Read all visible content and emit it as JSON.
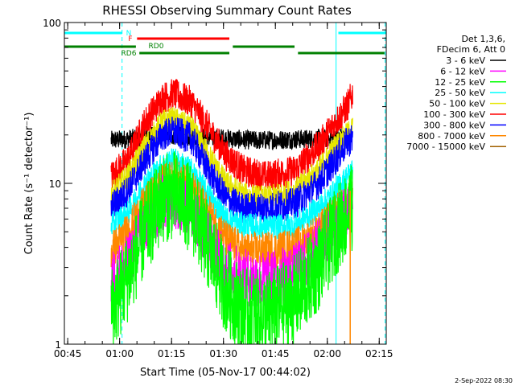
{
  "chart_data": {
    "type": "line",
    "title": "RHESSI Observing Summary Count Rates",
    "xlabel": "Start Time (05-Nov-17 00:44:02)",
    "ylabel": "Count Rate (s⁻¹ detector⁻¹)",
    "yscale": "log",
    "xlim": [
      0,
      5580
    ],
    "ylim": [
      1,
      100
    ],
    "x_ticks": [
      {
        "t": 58,
        "label": "00:45"
      },
      {
        "t": 958,
        "label": "01:00"
      },
      {
        "t": 1858,
        "label": "01:15"
      },
      {
        "t": 2758,
        "label": "01:30"
      },
      {
        "t": 3658,
        "label": "01:45"
      },
      {
        "t": 4558,
        "label": "02:00"
      },
      {
        "t": 5458,
        "label": "02:15"
      }
    ],
    "y_ticks": [
      {
        "v": 1,
        "label": "1"
      },
      {
        "v": 10,
        "label": "10"
      },
      {
        "v": 100,
        "label": "100"
      }
    ],
    "legend": {
      "placement": "right",
      "header": [
        "Det 1,3,6,",
        "FDecim 6, Att 0"
      ],
      "entries": [
        {
          "label": "3 - 6 keV",
          "color": "#000000"
        },
        {
          "label": "6 - 12 keV",
          "color": "#ff00ff"
        },
        {
          "label": "12 - 25 keV",
          "color": "#00ff00"
        },
        {
          "label": "25 - 50 keV",
          "color": "#00ffff"
        },
        {
          "label": "50 - 100 keV",
          "color": "#e6e600"
        },
        {
          "label": "100 - 300 keV",
          "color": "#ff0000"
        },
        {
          "label": "300 - 800 keV",
          "color": "#0000ff"
        },
        {
          "label": "800 - 7000 keV",
          "color": "#ff8800"
        },
        {
          "label": "7000 - 15000 keV",
          "color": "#a06000"
        }
      ]
    },
    "series": [
      {
        "name": "3 - 6 keV",
        "color": "#000000",
        "noise": 0.06,
        "points": [
          [
            810,
            18.5
          ],
          [
            1200,
            19
          ],
          [
            1700,
            20
          ],
          [
            2200,
            19.5
          ],
          [
            2800,
            19
          ],
          [
            3300,
            18.5
          ],
          [
            4000,
            18.8
          ],
          [
            4500,
            19
          ],
          [
            4900,
            19.5
          ]
        ]
      },
      {
        "name": "100 - 300 keV",
        "color": "#ff0000",
        "noise": 0.1,
        "points": [
          [
            810,
            11
          ],
          [
            1100,
            14
          ],
          [
            1400,
            24
          ],
          [
            1700,
            34
          ],
          [
            1900,
            36
          ],
          [
            2200,
            32
          ],
          [
            2500,
            22
          ],
          [
            2800,
            15
          ],
          [
            3100,
            12
          ],
          [
            3500,
            11
          ],
          [
            4000,
            12
          ],
          [
            4400,
            17
          ],
          [
            4700,
            24
          ],
          [
            4900,
            30
          ],
          [
            5000,
            36
          ]
        ]
      },
      {
        "name": "50 - 100 keV",
        "color": "#e6e600",
        "noise": 0.08,
        "points": [
          [
            810,
            8.5
          ],
          [
            1100,
            11
          ],
          [
            1400,
            17
          ],
          [
            1700,
            24
          ],
          [
            1900,
            25
          ],
          [
            2200,
            22
          ],
          [
            2500,
            15
          ],
          [
            2800,
            10
          ],
          [
            3100,
            8.5
          ],
          [
            3500,
            8
          ],
          [
            4000,
            9
          ],
          [
            4400,
            12
          ],
          [
            4700,
            17
          ],
          [
            4900,
            20
          ],
          [
            5000,
            22
          ]
        ]
      },
      {
        "name": "300 - 800 keV",
        "color": "#0000ff",
        "noise": 0.1,
        "points": [
          [
            810,
            7
          ],
          [
            1100,
            9
          ],
          [
            1400,
            14
          ],
          [
            1700,
            20
          ],
          [
            1900,
            21
          ],
          [
            2200,
            19
          ],
          [
            2500,
            12
          ],
          [
            2800,
            8
          ],
          [
            3100,
            7
          ],
          [
            3500,
            7
          ],
          [
            4000,
            7.5
          ],
          [
            4400,
            10
          ],
          [
            4700,
            14
          ],
          [
            4900,
            18
          ],
          [
            5000,
            19
          ]
        ]
      },
      {
        "name": "25 - 50 keV",
        "color": "#00ffff",
        "noise": 0.08,
        "points": [
          [
            810,
            5.5
          ],
          [
            1100,
            6.5
          ],
          [
            1400,
            10
          ],
          [
            1700,
            13
          ],
          [
            1900,
            14
          ],
          [
            2200,
            12
          ],
          [
            2500,
            8.5
          ],
          [
            2800,
            6
          ],
          [
            3100,
            5.5
          ],
          [
            3500,
            5.3
          ],
          [
            4000,
            5.5
          ],
          [
            4400,
            7
          ],
          [
            4700,
            9
          ],
          [
            4900,
            11
          ],
          [
            5000,
            12
          ]
        ]
      },
      {
        "name": "800 - 7000 keV",
        "color": "#ff8800",
        "noise": 0.12,
        "points": [
          [
            810,
            3.8
          ],
          [
            1100,
            5
          ],
          [
            1400,
            7.5
          ],
          [
            1700,
            10
          ],
          [
            1900,
            11
          ],
          [
            2200,
            9.5
          ],
          [
            2500,
            6.5
          ],
          [
            2800,
            4.5
          ],
          [
            3100,
            3.8
          ],
          [
            3500,
            3.8
          ],
          [
            4000,
            4
          ],
          [
            4400,
            5
          ],
          [
            4700,
            6.5
          ],
          [
            4900,
            7.5
          ],
          [
            5000,
            8
          ]
        ]
      },
      {
        "name": "6 - 12 keV",
        "color": "#ff00ff",
        "noise": 0.18,
        "points": [
          [
            810,
            2.5
          ],
          [
            1100,
            3.2
          ],
          [
            1400,
            5.5
          ],
          [
            1700,
            7.5
          ],
          [
            1900,
            8
          ],
          [
            2200,
            7
          ],
          [
            2500,
            4.5
          ],
          [
            2800,
            3
          ],
          [
            3100,
            2.6
          ],
          [
            3500,
            2.5
          ],
          [
            4000,
            2.8
          ],
          [
            4400,
            4
          ],
          [
            4700,
            5.5
          ],
          [
            4900,
            6.5
          ],
          [
            5000,
            7
          ]
        ]
      },
      {
        "name": "12 - 25 keV",
        "color": "#00ff00",
        "noise": 0.28,
        "points": [
          [
            810,
            1.6
          ],
          [
            1100,
            2.6
          ],
          [
            1400,
            5
          ],
          [
            1700,
            8
          ],
          [
            1900,
            8.5
          ],
          [
            2200,
            7
          ],
          [
            2500,
            4
          ],
          [
            2800,
            2.2
          ],
          [
            3100,
            1.6
          ],
          [
            3500,
            1.5
          ],
          [
            4000,
            1.9
          ],
          [
            4400,
            3
          ],
          [
            4700,
            5
          ],
          [
            4900,
            6.5
          ],
          [
            5000,
            7
          ]
        ]
      }
    ],
    "annotations": {
      "saa_n": {
        "label": "N",
        "color": "#00ffff",
        "intervals": [
          [
            0,
            1000
          ],
          [
            4750,
            5580
          ]
        ]
      },
      "flare_f": {
        "label": "F",
        "color": "#ff0000",
        "intervals": [
          [
            1260,
            2860
          ]
        ]
      },
      "rd0": {
        "label": "RD0",
        "color": "#008000",
        "intervals": [
          [
            0,
            1240
          ],
          [
            2920,
            3990
          ]
        ]
      },
      "rd6": {
        "label": "RD6",
        "color": "#008000",
        "intervals": [
          [
            1300,
            2860
          ],
          [
            4050,
            5550
          ]
        ]
      },
      "night_lines": {
        "color": "#00ffff",
        "solid": [
          0,
          4710
        ],
        "dashed": [
          1000,
          5560
        ]
      },
      "orange_spike_t": 4955
    },
    "timestamp": "2-Sep-2022 08:30"
  }
}
